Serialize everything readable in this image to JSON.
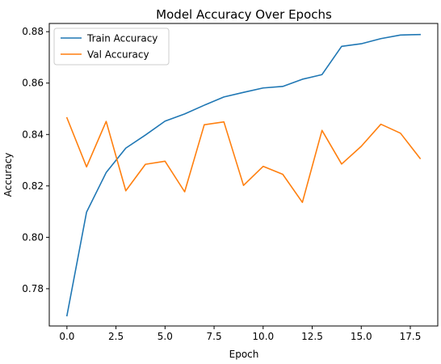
{
  "chart_data": {
    "type": "line",
    "title": "Model Accuracy Over Epochs",
    "xlabel": "Epoch",
    "ylabel": "Accuracy",
    "xlim": [
      -0.9,
      18.9
    ],
    "ylim": [
      0.7655,
      0.8832
    ],
    "grid": false,
    "legend_position": "top-left",
    "x_ticks": [
      0.0,
      2.5,
      5.0,
      7.5,
      10.0,
      12.5,
      15.0,
      17.5
    ],
    "x_tick_labels": [
      "0.0",
      "2.5",
      "5.0",
      "7.5",
      "10.0",
      "12.5",
      "15.0",
      "17.5"
    ],
    "y_ticks": [
      0.78,
      0.8,
      0.82,
      0.84,
      0.86,
      0.88
    ],
    "y_tick_labels": [
      "0.78",
      "0.80",
      "0.82",
      "0.84",
      "0.86",
      "0.88"
    ],
    "x": [
      0,
      1,
      2,
      3,
      4,
      5,
      6,
      7,
      8,
      9,
      10,
      11,
      12,
      13,
      14,
      15,
      16,
      17,
      18
    ],
    "series": [
      {
        "name": "Train Accuracy",
        "color": "#1f77b4",
        "values": [
          0.7695,
          0.8098,
          0.8252,
          0.8347,
          0.8398,
          0.8452,
          0.848,
          0.8514,
          0.8546,
          0.8564,
          0.8581,
          0.8587,
          0.8615,
          0.8633,
          0.8743,
          0.8753,
          0.8773,
          0.8787,
          0.8789
        ]
      },
      {
        "name": "Val Accuracy",
        "color": "#ff7f0e",
        "values": [
          0.8465,
          0.8274,
          0.8451,
          0.8181,
          0.8284,
          0.8296,
          0.8177,
          0.8438,
          0.8449,
          0.8202,
          0.8276,
          0.8245,
          0.8136,
          0.8416,
          0.8285,
          0.8354,
          0.844,
          0.8405,
          0.8307
        ]
      }
    ]
  }
}
